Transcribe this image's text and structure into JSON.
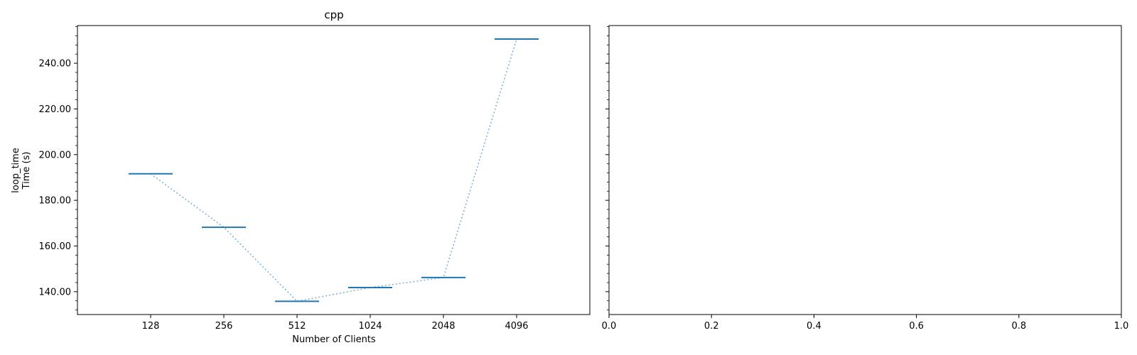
{
  "chart_data": [
    {
      "type": "line",
      "title": "cpp",
      "xlabel": "Number of Clients",
      "ylabel_lines": [
        "loop_time",
        "Time (s)"
      ],
      "categories": [
        "128",
        "256",
        "512",
        "1024",
        "2048",
        "4096"
      ],
      "values": [
        191.6,
        168.2,
        135.8,
        141.8,
        146.2,
        250.6
      ],
      "yticks": [
        140,
        160,
        180,
        200,
        220,
        240
      ],
      "ytick_labels": [
        "140.00",
        "160.00",
        "180.00",
        "200.00",
        "220.00",
        "240.00"
      ],
      "ylim": [
        130,
        256.5
      ],
      "marker": "horizontal-line",
      "connector": "dotted",
      "grid": false,
      "legend": "none",
      "colors": {
        "marker": "#1f77b4",
        "connector": "#7fb2dc"
      }
    },
    {
      "type": "empty",
      "title": "",
      "xlabel": "",
      "ylabel": "",
      "xticks": [
        0.0,
        0.2,
        0.4,
        0.6,
        0.8,
        1.0
      ],
      "xtick_labels": [
        "0.0",
        "0.2",
        "0.4",
        "0.6",
        "0.8",
        "1.0"
      ],
      "xlim": [
        0,
        1
      ],
      "shares_y_with": "cpp",
      "grid": false,
      "legend": "none"
    }
  ]
}
